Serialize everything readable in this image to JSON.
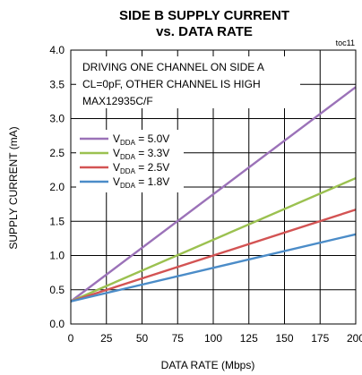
{
  "chart_data": {
    "type": "line",
    "title_line1": "SIDE B SUPPLY CURRENT",
    "title_line2": "vs. DATA RATE",
    "figure_code": "toc11",
    "xlabel": "DATA RATE (Mbps)",
    "ylabel": "SUPPLY CURRENT (mA)",
    "xlim": [
      0,
      200
    ],
    "ylim": [
      0.0,
      4.0
    ],
    "x_ticks": [
      "0",
      "25",
      "50",
      "75",
      "100",
      "125",
      "150",
      "175",
      "200"
    ],
    "y_ticks": [
      "0.0",
      "0.5",
      "1.0",
      "1.5",
      "2.0",
      "2.5",
      "3.0",
      "3.5",
      "4.0"
    ],
    "grid": true,
    "annotations": [
      "DRIVING ONE CHANNEL ON SIDE A",
      "CL=0pF, OTHER CHANNEL IS HIGH",
      "MAX12935C/F"
    ],
    "legend_label_main": "V",
    "legend_label_sub": "DDA",
    "series": [
      {
        "name": "VDDA = 5.0V",
        "value_text": " = 5.0V",
        "color": "#9b72b8",
        "x": [
          0,
          200
        ],
        "y": [
          0.33,
          3.46
        ]
      },
      {
        "name": "VDDA = 3.3V",
        "value_text": " = 3.3V",
        "color": "#9bc150",
        "x": [
          0,
          200
        ],
        "y": [
          0.33,
          2.13
        ]
      },
      {
        "name": "VDDA = 2.5V",
        "value_text": " = 2.5V",
        "color": "#d35353",
        "x": [
          0,
          200
        ],
        "y": [
          0.33,
          1.67
        ]
      },
      {
        "name": "VDDA = 1.8V",
        "value_text": " = 1.8V",
        "color": "#4b8cc8",
        "x": [
          0,
          200
        ],
        "y": [
          0.33,
          1.31
        ]
      }
    ]
  }
}
